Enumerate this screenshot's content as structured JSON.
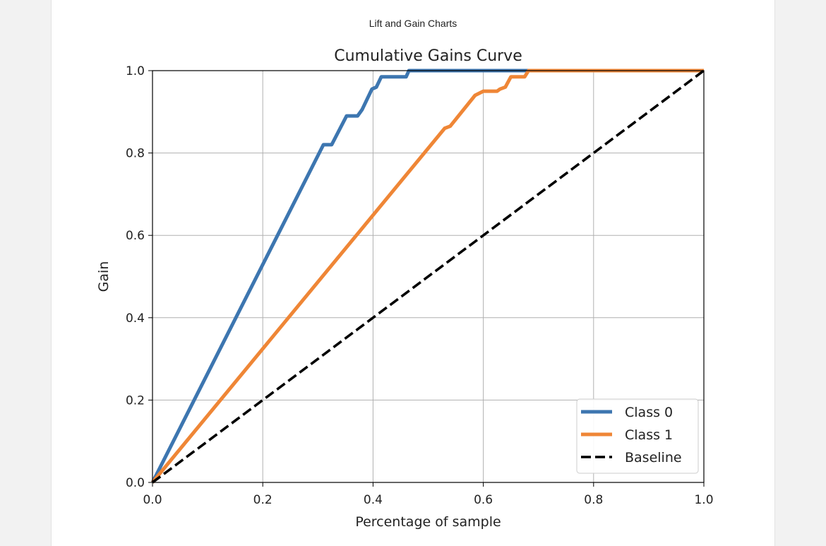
{
  "page": {
    "heading": "Lift and Gain Charts"
  },
  "chart_data": {
    "type": "line",
    "title": "Cumulative Gains Curve",
    "xlabel": "Percentage of sample",
    "ylabel": "Gain",
    "xlim": [
      0,
      1
    ],
    "ylim": [
      0,
      1
    ],
    "xticks": [
      0.0,
      0.2,
      0.4,
      0.6,
      0.8,
      1.0
    ],
    "yticks": [
      0.0,
      0.2,
      0.4,
      0.6,
      0.8,
      1.0
    ],
    "tick_labels_x": [
      "0.0",
      "0.2",
      "0.4",
      "0.6",
      "0.8",
      "1.0"
    ],
    "tick_labels_y": [
      "0.0",
      "0.2",
      "0.4",
      "0.6",
      "0.8",
      "1.0"
    ],
    "grid": true,
    "legend_position": "lower-right",
    "series": [
      {
        "name": "Class 0",
        "color": "#3d76b0",
        "style": "solid",
        "x": [
          0,
          0.31,
          0.325,
          0.352,
          0.372,
          0.38,
          0.398,
          0.406,
          0.415,
          0.46,
          0.465,
          0.49,
          1.0
        ],
        "y": [
          0,
          0.82,
          0.82,
          0.89,
          0.89,
          0.905,
          0.955,
          0.96,
          0.985,
          0.985,
          1.0,
          1.0,
          1.0
        ]
      },
      {
        "name": "Class 1",
        "color": "#ef8636",
        "style": "solid",
        "x": [
          0,
          0.53,
          0.54,
          0.585,
          0.6,
          0.625,
          0.63,
          0.64,
          0.65,
          0.675,
          0.682,
          1.0
        ],
        "y": [
          0,
          0.86,
          0.865,
          0.94,
          0.95,
          0.95,
          0.955,
          0.96,
          0.985,
          0.985,
          1.0,
          1.0
        ]
      },
      {
        "name": "Baseline",
        "color": "#000000",
        "style": "dashed",
        "x": [
          0,
          1
        ],
        "y": [
          0,
          1
        ]
      }
    ]
  }
}
